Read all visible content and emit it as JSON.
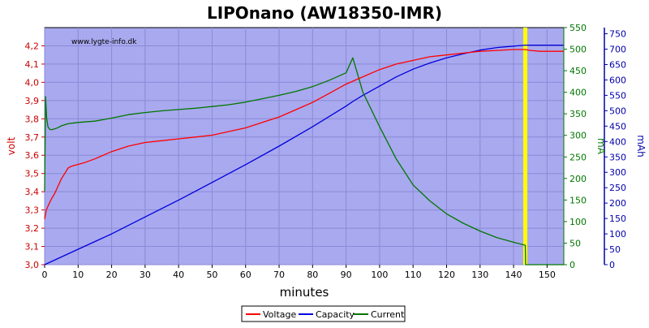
{
  "chart_data": {
    "type": "line",
    "title": "LIPOnano (AW18350-IMR)",
    "watermark": "www.lygte-info.dk",
    "xlabel": "minutes",
    "xlim": [
      0,
      155
    ],
    "xticks": [
      0,
      10,
      20,
      30,
      40,
      50,
      60,
      70,
      80,
      90,
      100,
      110,
      120,
      130,
      140,
      150
    ],
    "background_color": "#a9a9ef",
    "grid": true,
    "legend": "bottom-center",
    "cutoff_marker": {
      "x": 143.5,
      "color": "#ffff00"
    },
    "axes": {
      "volt": {
        "label": "volt",
        "side": "left",
        "color": "#cc0000",
        "lim": [
          3.0,
          4.3
        ],
        "ticks": [
          3.0,
          3.1,
          3.2,
          3.3,
          3.4,
          3.5,
          3.6,
          3.7,
          3.8,
          3.9,
          4.0,
          4.1,
          4.2
        ],
        "tick_labels": [
          "3,0",
          "3,1",
          "3,2",
          "3,3",
          "3,4",
          "3,5",
          "3,6",
          "3,7",
          "3,8",
          "3,9",
          "4,0",
          "4,1",
          "4,2"
        ]
      },
      "mA": {
        "label": "mA",
        "side": "right",
        "color": "#007700",
        "lim": [
          0,
          550
        ],
        "ticks": [
          0,
          50,
          100,
          150,
          200,
          250,
          300,
          350,
          400,
          450,
          500,
          550
        ],
        "tick_labels": [
          "0",
          "50",
          "100",
          "150",
          "200",
          "250",
          "300",
          "350",
          "400",
          "450",
          "500",
          "550"
        ]
      },
      "mAh": {
        "label": "mAh",
        "side": "right-outer",
        "color": "#0000aa",
        "lim": [
          0,
          770
        ],
        "ticks": [
          0,
          50,
          100,
          150,
          200,
          250,
          300,
          350,
          400,
          450,
          500,
          550,
          600,
          650,
          700,
          750
        ],
        "tick_labels": [
          "0",
          "50",
          "100",
          "150",
          "200",
          "250",
          "300",
          "350",
          "400",
          "450",
          "500",
          "550",
          "600",
          "650",
          "700",
          "750"
        ]
      }
    },
    "series": [
      {
        "name": "Voltage",
        "axis": "volt",
        "color": "#ff0000",
        "x": [
          0,
          0.5,
          1,
          2,
          3,
          4,
          5,
          6,
          7,
          8,
          10,
          12,
          15,
          20,
          25,
          30,
          35,
          40,
          45,
          50,
          55,
          60,
          65,
          70,
          75,
          80,
          85,
          90,
          95,
          100,
          105,
          110,
          115,
          120,
          125,
          130,
          135,
          140,
          142,
          143.5,
          145,
          148,
          150,
          155
        ],
        "y": [
          3.25,
          3.3,
          3.32,
          3.36,
          3.39,
          3.43,
          3.47,
          3.5,
          3.53,
          3.54,
          3.55,
          3.56,
          3.58,
          3.62,
          3.65,
          3.67,
          3.68,
          3.69,
          3.7,
          3.71,
          3.73,
          3.75,
          3.78,
          3.81,
          3.85,
          3.89,
          3.94,
          3.99,
          4.03,
          4.07,
          4.1,
          4.12,
          4.14,
          4.15,
          4.16,
          4.17,
          4.175,
          4.18,
          4.18,
          4.18,
          4.175,
          4.17,
          4.17,
          4.17
        ]
      },
      {
        "name": "Capacity",
        "axis": "mAh",
        "color": "#0000dd",
        "x": [
          0,
          10,
          20,
          30,
          40,
          50,
          60,
          70,
          80,
          90,
          92,
          95,
          100,
          105,
          110,
          115,
          120,
          125,
          130,
          135,
          140,
          143.5,
          145,
          150,
          155
        ],
        "y": [
          0,
          50,
          100,
          155,
          210,
          267,
          325,
          385,
          448,
          515,
          530,
          550,
          580,
          610,
          635,
          655,
          672,
          685,
          697,
          705,
          710,
          713,
          713,
          713,
          713
        ]
      },
      {
        "name": "Current",
        "axis": "mA",
        "color": "#007700",
        "x": [
          0,
          0.3,
          0.6,
          1,
          1.5,
          2,
          3,
          4,
          5,
          7,
          10,
          15,
          20,
          25,
          30,
          35,
          40,
          45,
          50,
          55,
          60,
          65,
          70,
          75,
          80,
          85,
          90,
          92,
          95,
          100,
          105,
          110,
          115,
          120,
          125,
          130,
          135,
          140,
          143.5,
          143.6,
          145,
          150,
          155
        ],
        "y": [
          170,
          390,
          340,
          320,
          314,
          313,
          315,
          318,
          322,
          327,
          330,
          333,
          340,
          348,
          353,
          357,
          360,
          363,
          367,
          371,
          377,
          385,
          393,
          402,
          413,
          428,
          445,
          480,
          400,
          320,
          245,
          185,
          148,
          118,
          96,
          78,
          63,
          52,
          45,
          0,
          0,
          0,
          0
        ]
      }
    ]
  }
}
